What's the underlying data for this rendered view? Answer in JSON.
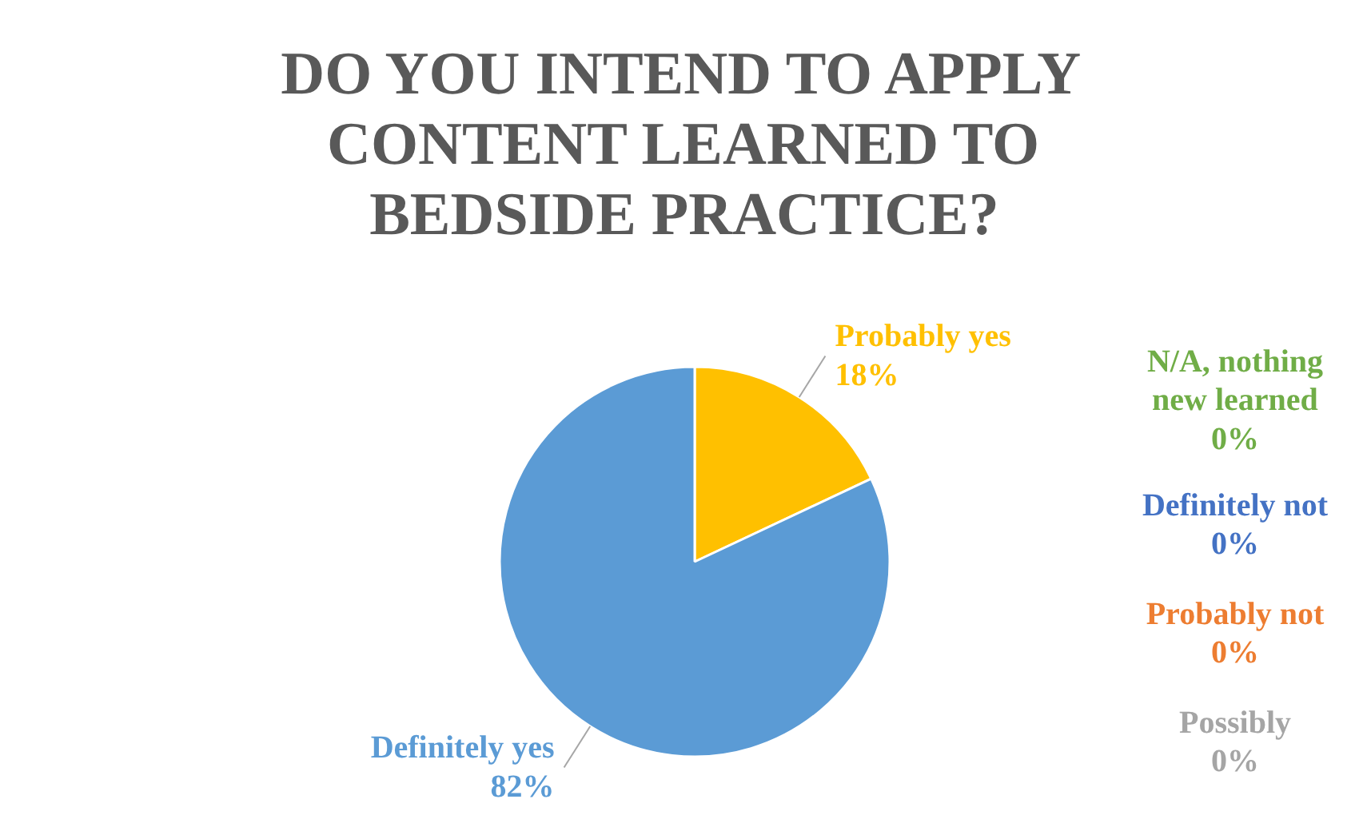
{
  "chart_data": {
    "type": "pie",
    "title": "DO YOU INTEND TO APPLY CONTENT LEARNED TO BEDSIDE PRACTICE?",
    "categories": [
      "Probably yes",
      "Definitely yes",
      "Possibly",
      "Probably not",
      "Definitely not",
      "N/A, nothing new learned"
    ],
    "values": [
      18,
      82,
      0,
      0,
      0,
      0
    ],
    "colors": [
      "#ffc000",
      "#5b9bd5",
      "#a5a5a5",
      "#ed7d31",
      "#4472c4",
      "#70ad47"
    ],
    "value_labels": [
      "18%",
      "82%",
      "0%",
      "0%",
      "0%",
      "0%"
    ]
  }
}
